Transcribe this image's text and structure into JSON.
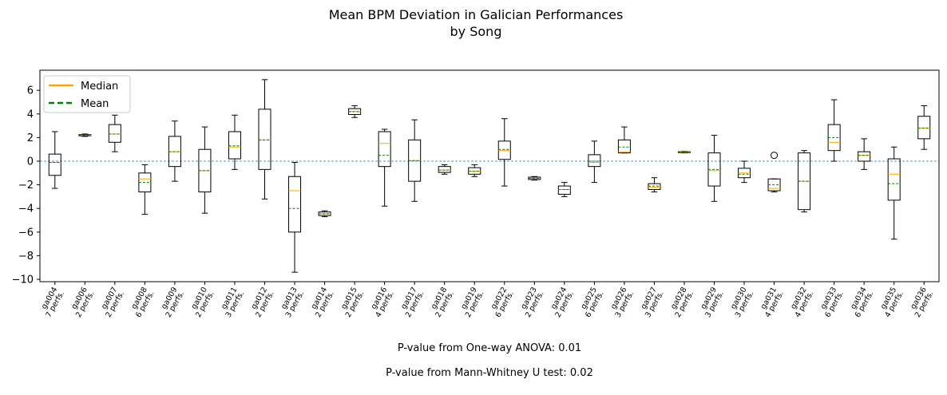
{
  "chart_data": {
    "type": "box",
    "title_lines": [
      "Mean BPM Deviation in Galician Performances",
      "by Song"
    ],
    "xlabel": "",
    "ylabel": "",
    "ylim": [
      -10.2,
      7.7
    ],
    "yticks": [
      6,
      4,
      2,
      0,
      -2,
      -4,
      -6,
      -8,
      -10
    ],
    "reference_line": 0,
    "legend": {
      "position": "top-left",
      "entries": [
        {
          "label": "Median",
          "color": "#ffa500",
          "style": "solid"
        },
        {
          "label": "Mean",
          "color": "#008000",
          "style": "dashed"
        }
      ]
    },
    "colors": {
      "median": "#ffa500",
      "mean": "#008000",
      "zero_line": "#1f77b4",
      "box": "#000000"
    },
    "boxes": [
      {
        "song": "ga004",
        "perfs": "7 perfs.",
        "wlo": -2.3,
        "q1": -1.2,
        "med": -0.1,
        "mean": -0.1,
        "q3": 0.6,
        "whi": 2.5,
        "outliers": []
      },
      {
        "song": "ga006",
        "perfs": "2 perfs.",
        "wlo": 2.1,
        "q1": 2.15,
        "med": 2.2,
        "mean": 2.2,
        "q3": 2.25,
        "whi": 2.3,
        "outliers": []
      },
      {
        "song": "ga007",
        "perfs": "2 perfs.",
        "wlo": 0.8,
        "q1": 1.6,
        "med": 2.3,
        "mean": 2.3,
        "q3": 3.1,
        "whi": 3.9,
        "outliers": []
      },
      {
        "song": "ga008",
        "perfs": "6 perfs.",
        "wlo": -4.5,
        "q1": -2.6,
        "med": -1.5,
        "mean": -1.8,
        "q3": -1.0,
        "whi": -0.3,
        "outliers": []
      },
      {
        "song": "ga009",
        "perfs": "2 perfs.",
        "wlo": -1.7,
        "q1": -0.45,
        "med": 0.8,
        "mean": 0.8,
        "q3": 2.1,
        "whi": 3.4,
        "outliers": []
      },
      {
        "song": "ga010",
        "perfs": "2 perfs.",
        "wlo": -4.4,
        "q1": -2.6,
        "med": -0.8,
        "mean": -0.8,
        "q3": 1.0,
        "whi": 2.9,
        "outliers": []
      },
      {
        "song": "ga011",
        "perfs": "3 perfs.",
        "wlo": -0.7,
        "q1": 0.2,
        "med": 1.2,
        "mean": 1.3,
        "q3": 2.5,
        "whi": 3.9,
        "outliers": []
      },
      {
        "song": "ga012",
        "perfs": "2 perfs.",
        "wlo": -3.2,
        "q1": -0.7,
        "med": 1.8,
        "mean": 1.8,
        "q3": 4.4,
        "whi": 6.9,
        "outliers": []
      },
      {
        "song": "ga013",
        "perfs": "3 perfs.",
        "wlo": -9.4,
        "q1": -6.0,
        "med": -2.5,
        "mean": -4.0,
        "q3": -1.3,
        "whi": -0.1,
        "outliers": []
      },
      {
        "song": "ga014",
        "perfs": "2 perfs.",
        "wlo": -4.7,
        "q1": -4.6,
        "med": -4.45,
        "mean": -4.45,
        "q3": -4.3,
        "whi": -4.2,
        "outliers": []
      },
      {
        "song": "ga015",
        "perfs": "2 perfs.",
        "wlo": 3.7,
        "q1": 3.95,
        "med": 4.2,
        "mean": 4.2,
        "q3": 4.45,
        "whi": 4.7,
        "outliers": []
      },
      {
        "song": "ga016",
        "perfs": "4 perfs.",
        "wlo": -3.8,
        "q1": -0.45,
        "med": 1.5,
        "mean": 0.5,
        "q3": 2.5,
        "whi": 2.7,
        "outliers": []
      },
      {
        "song": "ga017",
        "perfs": "2 perfs.",
        "wlo": -3.4,
        "q1": -1.7,
        "med": 0.05,
        "mean": 0.05,
        "q3": 1.8,
        "whi": 3.5,
        "outliers": []
      },
      {
        "song": "ga018",
        "perfs": "2 perfs.",
        "wlo": -1.1,
        "q1": -0.95,
        "med": -0.75,
        "mean": -0.75,
        "q3": -0.45,
        "whi": -0.3,
        "outliers": []
      },
      {
        "song": "ga019",
        "perfs": "2 perfs.",
        "wlo": -1.3,
        "q1": -1.1,
        "med": -0.85,
        "mean": -0.85,
        "q3": -0.55,
        "whi": -0.3,
        "outliers": []
      },
      {
        "song": "ga022",
        "perfs": "6 perfs.",
        "wlo": -2.1,
        "q1": 0.15,
        "med": 0.9,
        "mean": 1.0,
        "q3": 1.7,
        "whi": 3.6,
        "outliers": []
      },
      {
        "song": "ga023",
        "perfs": "2 perfs.",
        "wlo": -1.6,
        "q1": -1.55,
        "med": -1.45,
        "mean": -1.45,
        "q3": -1.35,
        "whi": -1.3,
        "outliers": []
      },
      {
        "song": "ga024",
        "perfs": "2 perfs.",
        "wlo": -3.0,
        "q1": -2.8,
        "med": -2.4,
        "mean": -2.4,
        "q3": -2.1,
        "whi": -1.8,
        "outliers": []
      },
      {
        "song": "ga025",
        "perfs": "6 perfs.",
        "wlo": -1.8,
        "q1": -0.45,
        "med": -0.1,
        "mean": 0.0,
        "q3": 0.55,
        "whi": 1.7,
        "outliers": []
      },
      {
        "song": "ga026",
        "perfs": "3 perfs.",
        "wlo": 0.7,
        "q1": 0.7,
        "med": 0.8,
        "mean": 1.2,
        "q3": 1.8,
        "whi": 2.9,
        "outliers": []
      },
      {
        "song": "ga027",
        "perfs": "3 perfs.",
        "wlo": -2.6,
        "q1": -2.4,
        "med": -2.2,
        "mean": -2.1,
        "q3": -1.9,
        "whi": -1.4,
        "outliers": []
      },
      {
        "song": "ga028",
        "perfs": "2 perfs.",
        "wlo": 0.7,
        "q1": 0.72,
        "med": 0.76,
        "mean": 0.76,
        "q3": 0.8,
        "whi": 0.82,
        "outliers": []
      },
      {
        "song": "ga029",
        "perfs": "3 perfs.",
        "wlo": -3.4,
        "q1": -2.1,
        "med": -0.8,
        "mean": -0.7,
        "q3": 0.7,
        "whi": 2.2,
        "outliers": []
      },
      {
        "song": "ga030",
        "perfs": "3 perfs.",
        "wlo": -1.8,
        "q1": -1.4,
        "med": -1.0,
        "mean": -1.1,
        "q3": -0.6,
        "whi": 0.0,
        "outliers": []
      },
      {
        "song": "ga031",
        "perfs": "4 perfs.",
        "wlo": -2.6,
        "q1": -2.5,
        "med": -2.3,
        "mean": -2.0,
        "q3": -1.5,
        "whi": -1.5,
        "outliers": [
          0.5
        ]
      },
      {
        "song": "ga032",
        "perfs": "4 perfs.",
        "wlo": -4.3,
        "q1": -4.1,
        "med": -1.7,
        "mean": -1.7,
        "q3": 0.7,
        "whi": 0.9,
        "outliers": []
      },
      {
        "song": "ga033",
        "perfs": "6 perfs.",
        "wlo": 0.0,
        "q1": 0.9,
        "med": 1.6,
        "mean": 2.0,
        "q3": 3.1,
        "whi": 5.2,
        "outliers": []
      },
      {
        "song": "ga034",
        "perfs": "6 perfs.",
        "wlo": -0.7,
        "q1": 0.0,
        "med": 0.5,
        "mean": 0.5,
        "q3": 0.8,
        "whi": 1.9,
        "outliers": []
      },
      {
        "song": "ga035",
        "perfs": "4 perfs.",
        "wlo": -6.6,
        "q1": -3.3,
        "med": -1.1,
        "mean": -1.9,
        "q3": 0.2,
        "whi": 1.2,
        "outliers": []
      },
      {
        "song": "ga036",
        "perfs": "2 perfs.",
        "wlo": 1.0,
        "q1": 1.9,
        "med": 2.8,
        "mean": 2.8,
        "q3": 3.8,
        "whi": 4.7,
        "outliers": []
      }
    ]
  },
  "footnotes": {
    "anova": "P-value from One-way ANOVA: 0.01",
    "mannwhitney": "P-value from Mann-Whitney U test: 0.02"
  }
}
